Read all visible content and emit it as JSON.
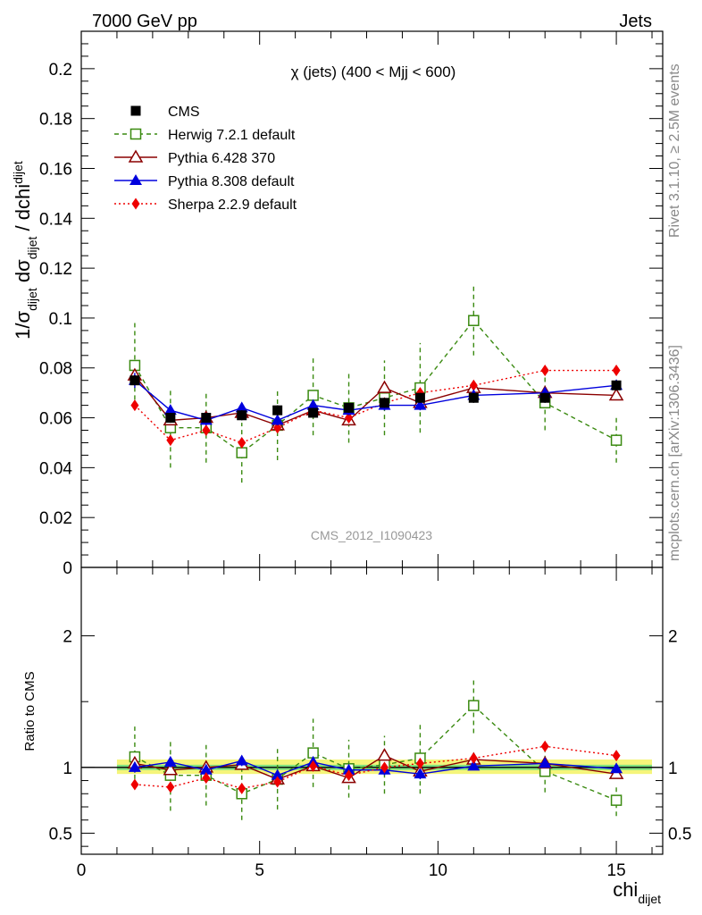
{
  "header": {
    "left": "7000 GeV pp",
    "right": "Jets"
  },
  "side": {
    "rivet": "Rivet 3.1.10, ≥ 2.5M events",
    "mcplots": "mcplots.cern.ch [arXiv:1306.3436]"
  },
  "analysis_id": "CMS_2012_I1090423",
  "colors": {
    "cms": "#000000",
    "herwig": "#3a8a10",
    "pythia6": "#8b0000",
    "pythia8": "#0000dd",
    "sherpa": "#ee0000",
    "band_inner": "#7fe27f",
    "band_outer": "#f5f57a"
  },
  "chart_data": [
    {
      "type": "line",
      "panel": "main",
      "title": "χ (jets) (400 < Mjj <  600)",
      "ylabel": {
        "a": "1/σ",
        "b": "dijet",
        "c": " dσ",
        "d": "dijet",
        "e": " / dchi",
        "f": "dijet"
      },
      "xlim": [
        0,
        16.3
      ],
      "ylim": [
        0,
        0.215
      ],
      "yticks": [
        {
          "v": 0,
          "label": "0"
        },
        {
          "v": 0.02,
          "label": "0.02"
        },
        {
          "v": 0.04,
          "label": "0.04"
        },
        {
          "v": 0.06,
          "label": "0.06"
        },
        {
          "v": 0.08,
          "label": "0.08"
        },
        {
          "v": 0.1,
          "label": "0.1"
        },
        {
          "v": 0.12,
          "label": "0.12"
        },
        {
          "v": 0.14,
          "label": "0.14"
        },
        {
          "v": 0.16,
          "label": "0.16"
        },
        {
          "v": 0.18,
          "label": "0.18"
        },
        {
          "v": 0.2,
          "label": "0.2"
        }
      ],
      "legend_position": "top-left",
      "series": [
        {
          "key": "cms",
          "name": "CMS",
          "marker": "square-filled",
          "line": "none",
          "x": [
            1.5,
            2.5,
            3.5,
            4.5,
            5.5,
            6.5,
            7.5,
            8.5,
            9.5,
            11,
            13,
            15
          ],
          "y": [
            0.075,
            0.06,
            0.06,
            0.061,
            0.063,
            0.062,
            0.064,
            0.066,
            0.068,
            0.068,
            0.068,
            0.073
          ],
          "err": [
            0.002,
            0.002,
            0.002,
            0.002,
            0.002,
            0.002,
            0.002,
            0.002,
            0.002,
            0.002,
            0.002,
            0.002
          ]
        },
        {
          "key": "herwig",
          "name": "Herwig 7.2.1 default",
          "marker": "square-open",
          "line": "dashed",
          "x": [
            1.5,
            2.5,
            3.5,
            4.5,
            5.5,
            6.5,
            7.5,
            8.5,
            9.5,
            11,
            13,
            15
          ],
          "y": [
            0.081,
            0.056,
            0.056,
            0.046,
            0.057,
            0.069,
            0.064,
            0.068,
            0.072,
            0.099,
            0.066,
            0.051
          ],
          "err": [
            0.017,
            0.016,
            0.014,
            0.012,
            0.014,
            0.016,
            0.014,
            0.015,
            0.018,
            0.014,
            0.011,
            0.009
          ]
        },
        {
          "key": "pythia6",
          "name": "Pythia 6.428 370",
          "marker": "triangle-open",
          "line": "solid",
          "x": [
            1.5,
            2.5,
            3.5,
            4.5,
            5.5,
            6.5,
            7.5,
            8.5,
            9.5,
            11,
            13,
            15
          ],
          "y": [
            0.077,
            0.059,
            0.06,
            0.062,
            0.057,
            0.063,
            0.059,
            0.072,
            0.066,
            0.072,
            0.07,
            0.069
          ],
          "err": [
            0.002,
            0.002,
            0.002,
            0.002,
            0.002,
            0.002,
            0.002,
            0.002,
            0.002,
            0.002,
            0.002,
            0.002
          ]
        },
        {
          "key": "pythia8",
          "name": "Pythia 8.308 default",
          "marker": "triangle-filled",
          "line": "solid",
          "x": [
            1.5,
            2.5,
            3.5,
            4.5,
            5.5,
            6.5,
            7.5,
            8.5,
            9.5,
            11,
            13,
            15
          ],
          "y": [
            0.075,
            0.063,
            0.059,
            0.064,
            0.059,
            0.065,
            0.063,
            0.065,
            0.065,
            0.069,
            0.07,
            0.073
          ],
          "err": [
            0.003,
            0.002,
            0.002,
            0.002,
            0.002,
            0.002,
            0.002,
            0.002,
            0.002,
            0.002,
            0.002,
            0.002
          ]
        },
        {
          "key": "sherpa",
          "name": "Sherpa 2.2.9 default",
          "marker": "diamond-filled",
          "line": "dotted",
          "x": [
            1.5,
            2.5,
            3.5,
            4.5,
            5.5,
            6.5,
            7.5,
            8.5,
            9.5,
            11,
            13,
            15
          ],
          "y": [
            0.065,
            0.051,
            0.055,
            0.05,
            0.056,
            0.063,
            0.06,
            0.066,
            0.07,
            0.073,
            0.079,
            0.079
          ],
          "err": [
            0.002,
            0.002,
            0.002,
            0.002,
            0.002,
            0.002,
            0.002,
            0.002,
            0.002,
            0.002,
            0.002,
            0.002
          ]
        }
      ]
    },
    {
      "type": "line",
      "panel": "ratio",
      "ylabel": "Ratio to CMS",
      "xlabel": {
        "main": "chi",
        "sub": "dijet"
      },
      "xlim": [
        0,
        16.3
      ],
      "ylim": [
        0.34,
        2.52
      ],
      "xticks": [
        {
          "v": 0,
          "label": "0"
        },
        {
          "v": 5,
          "label": "5"
        },
        {
          "v": 10,
          "label": "10"
        },
        {
          "v": 15,
          "label": "15"
        }
      ],
      "yticks": [
        {
          "v": 0.5,
          "label": "0.5"
        },
        {
          "v": 1,
          "label": "1"
        },
        {
          "v": 2,
          "label": "2"
        }
      ],
      "reference": {
        "y": 1,
        "xmin": 1,
        "xmax": 16,
        "band_inner": [
          0.98,
          1.02
        ],
        "band_outer": [
          0.95,
          1.06
        ]
      },
      "series": [
        {
          "key": "herwig",
          "x": [
            1.5,
            2.5,
            3.5,
            4.5,
            5.5,
            6.5,
            7.5,
            8.5,
            9.5,
            11,
            13,
            15
          ],
          "y": [
            1.08,
            0.94,
            0.94,
            0.8,
            0.91,
            1.11,
            0.99,
            1.02,
            1.07,
            1.47,
            0.97,
            0.75
          ],
          "err": [
            0.23,
            0.27,
            0.23,
            0.2,
            0.23,
            0.26,
            0.22,
            0.22,
            0.27,
            0.21,
            0.16,
            0.12
          ]
        },
        {
          "key": "pythia6",
          "x": [
            1.5,
            2.5,
            3.5,
            4.5,
            5.5,
            6.5,
            7.5,
            8.5,
            9.5,
            11,
            13,
            15
          ],
          "y": [
            1.03,
            0.98,
            1.0,
            1.02,
            0.91,
            1.01,
            0.92,
            1.09,
            0.97,
            1.06,
            1.03,
            0.95
          ],
          "err": [
            0.03,
            0.03,
            0.03,
            0.03,
            0.03,
            0.03,
            0.03,
            0.03,
            0.03,
            0.03,
            0.03,
            0.03
          ]
        },
        {
          "key": "pythia8",
          "x": [
            1.5,
            2.5,
            3.5,
            4.5,
            5.5,
            6.5,
            7.5,
            8.5,
            9.5,
            11,
            13,
            15
          ],
          "y": [
            1.0,
            1.04,
            0.98,
            1.05,
            0.94,
            1.04,
            0.98,
            0.98,
            0.95,
            1.01,
            1.03,
            0.99
          ],
          "err": [
            0.04,
            0.04,
            0.04,
            0.04,
            0.04,
            0.04,
            0.04,
            0.04,
            0.04,
            0.03,
            0.03,
            0.03
          ]
        },
        {
          "key": "sherpa",
          "x": [
            1.5,
            2.5,
            3.5,
            4.5,
            5.5,
            6.5,
            7.5,
            8.5,
            9.5,
            11,
            13,
            15
          ],
          "y": [
            0.87,
            0.85,
            0.92,
            0.84,
            0.89,
            1.01,
            0.94,
            1.0,
            1.03,
            1.07,
            1.16,
            1.09
          ],
          "err": [
            0.03,
            0.03,
            0.03,
            0.03,
            0.03,
            0.03,
            0.03,
            0.03,
            0.03,
            0.03,
            0.03,
            0.03
          ]
        }
      ]
    }
  ]
}
